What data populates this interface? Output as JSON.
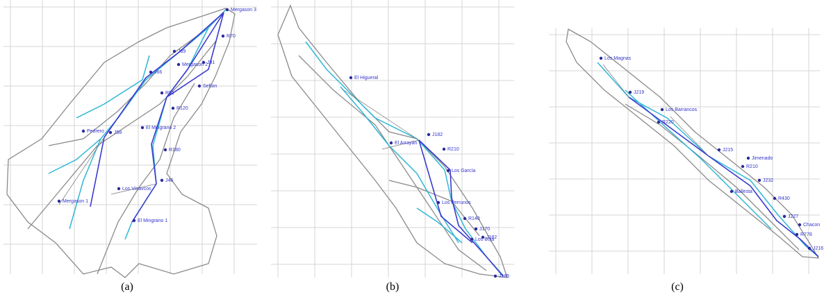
{
  "panels": [
    {
      "caption": "(a)",
      "labels": [
        "Mergason 3",
        "R70",
        "J91",
        "Sefton",
        "Mergason 2",
        "J89",
        "J66",
        "R81",
        "R120",
        "Pedrero",
        "J58",
        "El Mingrano 2",
        "R180",
        "J46",
        "Los Vinavcos",
        "Mergason 1",
        "El Mingrano 1"
      ]
    },
    {
      "caption": "(b)",
      "labels": [
        "El Higueral",
        "J182",
        "R210",
        "El Arrayán",
        "Los García",
        "Los Perrunos",
        "R140",
        "J170",
        "J182",
        "Los Boja",
        "J185"
      ]
    },
    {
      "caption": "(c)",
      "labels": [
        "Los Magnas",
        "J219",
        "Los Barrancos",
        "R220",
        "J215",
        "Jimenado",
        "R210",
        "J232",
        "Ballesta",
        "R430",
        "J227",
        "Chacon",
        "R778",
        "J216"
      ]
    }
  ]
}
